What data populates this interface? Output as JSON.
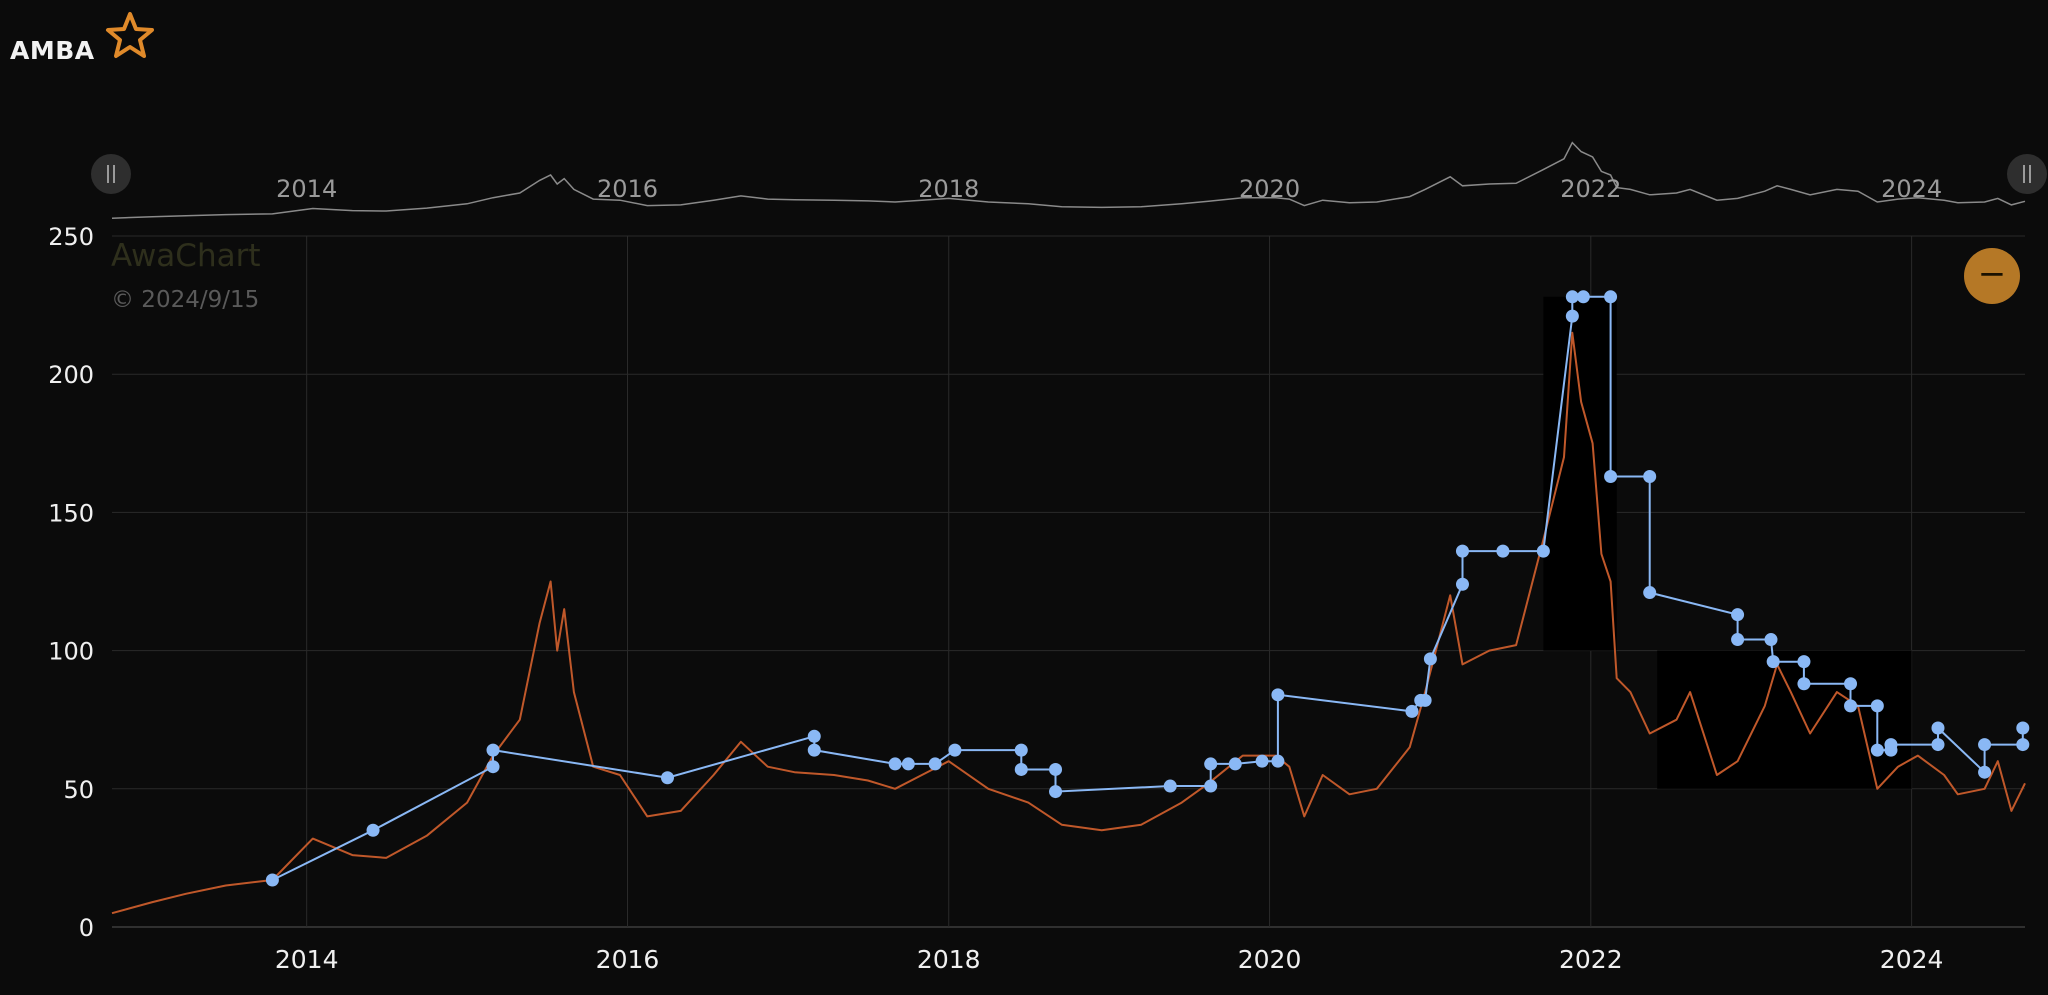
{
  "header": {
    "ticker": "AMBA",
    "watchlist_icon": "star-icon"
  },
  "watermark": {
    "brand": "AwaChart",
    "copyright": "© 2024/9/15"
  },
  "controls": {
    "zoom_out_label": "−",
    "handle_left_icon": "drag-handle-icon",
    "handle_right_icon": "drag-handle-icon"
  },
  "colors": {
    "background": "#0b0b0b",
    "price_line": "#c0582a",
    "target_line": "#8ab8f5",
    "grid": "#2a2a2a",
    "accent": "#b57826",
    "shade": "#000000"
  },
  "chart_data": {
    "type": "line",
    "x_range": [
      "2012-10-15",
      "2024-09-15"
    ],
    "ylim": [
      0,
      250
    ],
    "y_ticks": [
      0,
      50,
      100,
      150,
      200,
      250
    ],
    "x_ticks": [
      {
        "date": "2014-01-01",
        "label": "2014"
      },
      {
        "date": "2016-01-01",
        "label": "2016"
      },
      {
        "date": "2018-01-01",
        "label": "2018"
      },
      {
        "date": "2020-01-01",
        "label": "2020"
      },
      {
        "date": "2022-01-01",
        "label": "2022"
      },
      {
        "date": "2024-01-01",
        "label": "2024"
      }
    ],
    "grid": true,
    "series": [
      {
        "kind": "price",
        "points": [
          [
            "2012-10-15",
            5
          ],
          [
            "2013-01-15",
            9
          ],
          [
            "2013-04-01",
            12
          ],
          [
            "2013-07-01",
            15
          ],
          [
            "2013-10-15",
            17
          ],
          [
            "2014-01-15",
            32
          ],
          [
            "2014-04-15",
            26
          ],
          [
            "2014-07-01",
            25
          ],
          [
            "2014-10-01",
            33
          ],
          [
            "2015-01-01",
            45
          ],
          [
            "2015-03-01",
            62
          ],
          [
            "2015-05-01",
            75
          ],
          [
            "2015-06-15",
            110
          ],
          [
            "2015-07-10",
            125
          ],
          [
            "2015-07-25",
            100
          ],
          [
            "2015-08-10",
            115
          ],
          [
            "2015-09-01",
            85
          ],
          [
            "2015-10-15",
            58
          ],
          [
            "2015-12-15",
            55
          ],
          [
            "2016-02-15",
            40
          ],
          [
            "2016-05-01",
            42
          ],
          [
            "2016-07-15",
            55
          ],
          [
            "2016-09-15",
            67
          ],
          [
            "2016-11-15",
            58
          ],
          [
            "2017-01-15",
            56
          ],
          [
            "2017-04-15",
            55
          ],
          [
            "2017-07-01",
            53
          ],
          [
            "2017-09-01",
            50
          ],
          [
            "2017-11-01",
            55
          ],
          [
            "2018-01-01",
            60
          ],
          [
            "2018-04-01",
            50
          ],
          [
            "2018-07-01",
            45
          ],
          [
            "2018-09-15",
            37
          ],
          [
            "2018-12-15",
            35
          ],
          [
            "2019-03-15",
            37
          ],
          [
            "2019-06-15",
            45
          ],
          [
            "2019-08-15",
            52
          ],
          [
            "2019-11-01",
            62
          ],
          [
            "2020-01-15",
            62
          ],
          [
            "2020-02-15",
            58
          ],
          [
            "2020-03-20",
            40
          ],
          [
            "2020-05-01",
            55
          ],
          [
            "2020-07-01",
            48
          ],
          [
            "2020-09-01",
            50
          ],
          [
            "2020-11-15",
            65
          ],
          [
            "2020-12-20",
            85
          ],
          [
            "2021-02-15",
            120
          ],
          [
            "2021-03-15",
            95
          ],
          [
            "2021-05-15",
            100
          ],
          [
            "2021-07-15",
            102
          ],
          [
            "2021-09-15",
            140
          ],
          [
            "2021-11-01",
            170
          ],
          [
            "2021-11-20",
            215
          ],
          [
            "2021-12-10",
            190
          ],
          [
            "2022-01-05",
            175
          ],
          [
            "2022-01-25",
            135
          ],
          [
            "2022-02-15",
            125
          ],
          [
            "2022-03-01",
            90
          ],
          [
            "2022-04-01",
            85
          ],
          [
            "2022-05-15",
            70
          ],
          [
            "2022-07-15",
            75
          ],
          [
            "2022-08-15",
            85
          ],
          [
            "2022-10-15",
            55
          ],
          [
            "2022-12-01",
            60
          ],
          [
            "2023-02-01",
            80
          ],
          [
            "2023-03-01",
            95
          ],
          [
            "2023-04-01",
            85
          ],
          [
            "2023-05-15",
            70
          ],
          [
            "2023-07-15",
            85
          ],
          [
            "2023-09-01",
            80
          ],
          [
            "2023-10-15",
            50
          ],
          [
            "2023-12-01",
            58
          ],
          [
            "2024-01-15",
            62
          ],
          [
            "2024-03-15",
            55
          ],
          [
            "2024-04-15",
            48
          ],
          [
            "2024-06-15",
            50
          ],
          [
            "2024-07-15",
            60
          ],
          [
            "2024-08-15",
            42
          ],
          [
            "2024-09-15",
            52
          ]
        ]
      },
      {
        "kind": "price_target",
        "points": [
          [
            "2013-10-15",
            17
          ],
          [
            "2014-06-01",
            35
          ],
          [
            "2015-03-01",
            58
          ],
          [
            "2015-03-01",
            64
          ],
          [
            "2016-04-01",
            54
          ],
          [
            "2017-03-01",
            69
          ],
          [
            "2017-03-01",
            64
          ],
          [
            "2017-09-01",
            59
          ],
          [
            "2017-10-01",
            59
          ],
          [
            "2017-12-01",
            59
          ],
          [
            "2018-01-15",
            64
          ],
          [
            "2018-06-15",
            64
          ],
          [
            "2018-06-15",
            57
          ],
          [
            "2018-09-01",
            57
          ],
          [
            "2018-09-01",
            49
          ],
          [
            "2019-05-20",
            51
          ],
          [
            "2019-08-20",
            51
          ],
          [
            "2019-08-20",
            59
          ],
          [
            "2019-10-15",
            59
          ],
          [
            "2019-12-15",
            60
          ],
          [
            "2020-01-20",
            60
          ],
          [
            "2020-01-20",
            84
          ],
          [
            "2020-11-20",
            78
          ],
          [
            "2020-12-10",
            82
          ],
          [
            "2020-12-20",
            82
          ],
          [
            "2021-01-01",
            97
          ],
          [
            "2021-03-15",
            124
          ],
          [
            "2021-03-15",
            136
          ],
          [
            "2021-06-15",
            136
          ],
          [
            "2021-09-15",
            136
          ],
          [
            "2021-11-20",
            221
          ],
          [
            "2021-11-20",
            228
          ],
          [
            "2021-12-15",
            228
          ],
          [
            "2022-02-15",
            228
          ],
          [
            "2022-02-15",
            163
          ],
          [
            "2022-05-15",
            163
          ],
          [
            "2022-05-15",
            121
          ],
          [
            "2022-12-01",
            113
          ],
          [
            "2022-12-01",
            104
          ],
          [
            "2023-02-15",
            104
          ],
          [
            "2023-02-20",
            96
          ],
          [
            "2023-05-01",
            96
          ],
          [
            "2023-05-01",
            88
          ],
          [
            "2023-08-15",
            88
          ],
          [
            "2023-08-15",
            80
          ],
          [
            "2023-10-15",
            80
          ],
          [
            "2023-10-15",
            64
          ],
          [
            "2023-11-15",
            64
          ],
          [
            "2023-11-15",
            66
          ],
          [
            "2024-03-01",
            66
          ],
          [
            "2024-03-01",
            72
          ],
          [
            "2024-06-15",
            56
          ],
          [
            "2024-06-15",
            66
          ],
          [
            "2024-09-10",
            66
          ],
          [
            "2024-09-10",
            72
          ]
        ]
      }
    ],
    "shaded_regions": [
      {
        "from": "2021-09-15",
        "to": "2022-03-01",
        "y": [
          100,
          228
        ]
      },
      {
        "from": "2022-06-01",
        "to": "2024-01-01",
        "y": [
          50,
          100
        ]
      }
    ]
  }
}
